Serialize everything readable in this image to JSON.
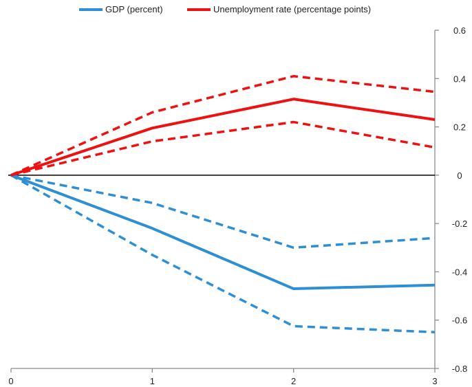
{
  "chart_data": {
    "type": "line",
    "x": [
      0,
      1,
      2,
      3
    ],
    "xlim": [
      0,
      3
    ],
    "ylim": [
      -0.8,
      0.6
    ],
    "x_ticks": [
      "0",
      "1",
      "2",
      "3"
    ],
    "y_ticks": [
      "0.6",
      "0.4",
      "0.2",
      "0",
      "-0.2",
      "-0.4",
      "-0.6",
      "-0.8"
    ],
    "y_tick_values": [
      0.6,
      0.4,
      0.2,
      0,
      -0.2,
      -0.4,
      -0.6,
      -0.8
    ],
    "legend_position": "top",
    "legend": [
      {
        "label": "GDP (percent)",
        "color": "#2e8fd4"
      },
      {
        "label": "Unemployment rate (percentage points)",
        "color": "#ee1111"
      }
    ],
    "series": [
      {
        "name": "GDP (percent)",
        "color": "#2e8fd4",
        "style": "solid",
        "values": [
          0,
          -0.22,
          -0.47,
          -0.455
        ]
      },
      {
        "color": "#2e8fd4",
        "style": "dashed",
        "values": [
          0,
          -0.115,
          -0.3,
          -0.26
        ]
      },
      {
        "color": "#2e8fd4",
        "style": "dashed",
        "values": [
          0,
          -0.33,
          -0.625,
          -0.65
        ]
      },
      {
        "name": "Unemployment rate (percentage points)",
        "color": "#ee1111",
        "style": "solid",
        "values": [
          0,
          0.195,
          0.315,
          0.23
        ]
      },
      {
        "color": "#ee1111",
        "style": "dashed",
        "values": [
          0,
          0.26,
          0.41,
          0.345
        ]
      },
      {
        "color": "#ee1111",
        "style": "dashed",
        "values": [
          0,
          0.14,
          0.22,
          0.115
        ]
      }
    ]
  }
}
